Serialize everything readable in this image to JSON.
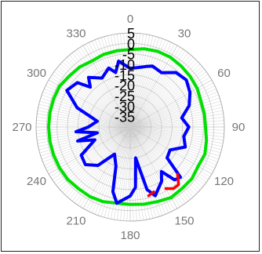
{
  "chart_data": {
    "type": "polar",
    "title": "",
    "angle_unit": "degrees",
    "angle_zero": "top",
    "angle_direction": "clockwise",
    "angle_tick_labels": [
      "0",
      "30",
      "60",
      "90",
      "120",
      "150",
      "180",
      "210",
      "240",
      "270",
      "300",
      "330"
    ],
    "radial_range": [
      -40,
      5
    ],
    "radial_tick_labels": [
      "5",
      "0",
      "-5",
      "-10",
      "-15",
      "-20",
      "-25",
      "-30",
      "-35"
    ],
    "grid": true,
    "series": [
      {
        "color": "#00e000",
        "points": [
          [
            0,
            -3
          ],
          [
            10,
            -2
          ],
          [
            20,
            -1.5
          ],
          [
            30,
            -1.5
          ],
          [
            40,
            -2
          ],
          [
            50,
            -2.5
          ],
          [
            60,
            -3
          ],
          [
            70,
            -4
          ],
          [
            80,
            -4
          ],
          [
            90,
            -4
          ],
          [
            100,
            -3
          ],
          [
            110,
            -2
          ],
          [
            120,
            -2.5
          ],
          [
            130,
            -1.5
          ],
          [
            140,
            -1.5
          ],
          [
            150,
            -1
          ],
          [
            160,
            -2
          ],
          [
            170,
            -2.5
          ],
          [
            180,
            -3
          ],
          [
            190,
            -3
          ],
          [
            200,
            -2
          ],
          [
            210,
            -1.5
          ],
          [
            220,
            -1.5
          ],
          [
            230,
            -1
          ],
          [
            240,
            -1
          ],
          [
            250,
            -1
          ],
          [
            260,
            -1
          ],
          [
            270,
            -1
          ],
          [
            280,
            -1
          ],
          [
            290,
            -1
          ],
          [
            300,
            -1
          ],
          [
            310,
            -2
          ],
          [
            320,
            -2.5
          ],
          [
            330,
            -3.5
          ],
          [
            340,
            -3
          ],
          [
            350,
            -3
          ],
          [
            360,
            -3
          ]
        ]
      },
      {
        "color": "#0000ff",
        "points": [
          [
            0,
            -12
          ],
          [
            10,
            -11
          ],
          [
            15,
            -10
          ],
          [
            20,
            -9
          ],
          [
            30,
            -10
          ],
          [
            40,
            -6
          ],
          [
            50,
            -5
          ],
          [
            60,
            -7
          ],
          [
            70,
            -10
          ],
          [
            80,
            -15
          ],
          [
            90,
            -12
          ],
          [
            100,
            -14
          ],
          [
            110,
            -12
          ],
          [
            120,
            -18
          ],
          [
            130,
            -17
          ],
          [
            135,
            -6
          ],
          [
            140,
            -7
          ],
          [
            145,
            -14
          ],
          [
            150,
            -10
          ],
          [
            160,
            -5
          ],
          [
            165,
            -9
          ],
          [
            170,
            -25
          ],
          [
            175,
            -11
          ],
          [
            180,
            -7
          ],
          [
            190,
            -3
          ],
          [
            195,
            -8
          ],
          [
            200,
            -20
          ],
          [
            210,
            -25
          ],
          [
            220,
            -16
          ],
          [
            230,
            -12
          ],
          [
            240,
            -13
          ],
          [
            250,
            -22
          ],
          [
            255,
            -14
          ],
          [
            260,
            -24
          ],
          [
            265,
            -14
          ],
          [
            270,
            -20
          ],
          [
            280,
            -24
          ],
          [
            285,
            -20
          ],
          [
            290,
            -13
          ],
          [
            300,
            -5
          ],
          [
            310,
            -7
          ],
          [
            315,
            -13
          ],
          [
            320,
            -9
          ],
          [
            330,
            -13
          ],
          [
            340,
            -10
          ],
          [
            345,
            -13
          ],
          [
            350,
            -8
          ],
          [
            360,
            -12
          ]
        ]
      },
      {
        "color": "#ff0000",
        "points": [
          [
            135,
            -8
          ],
          [
            140,
            -4
          ],
          [
            145,
            -4
          ],
          [
            150,
            -6
          ]
        ]
      },
      {
        "color": "#ff0000",
        "points": [
          [
            160,
            -7
          ],
          [
            165,
            -6
          ]
        ]
      }
    ]
  }
}
